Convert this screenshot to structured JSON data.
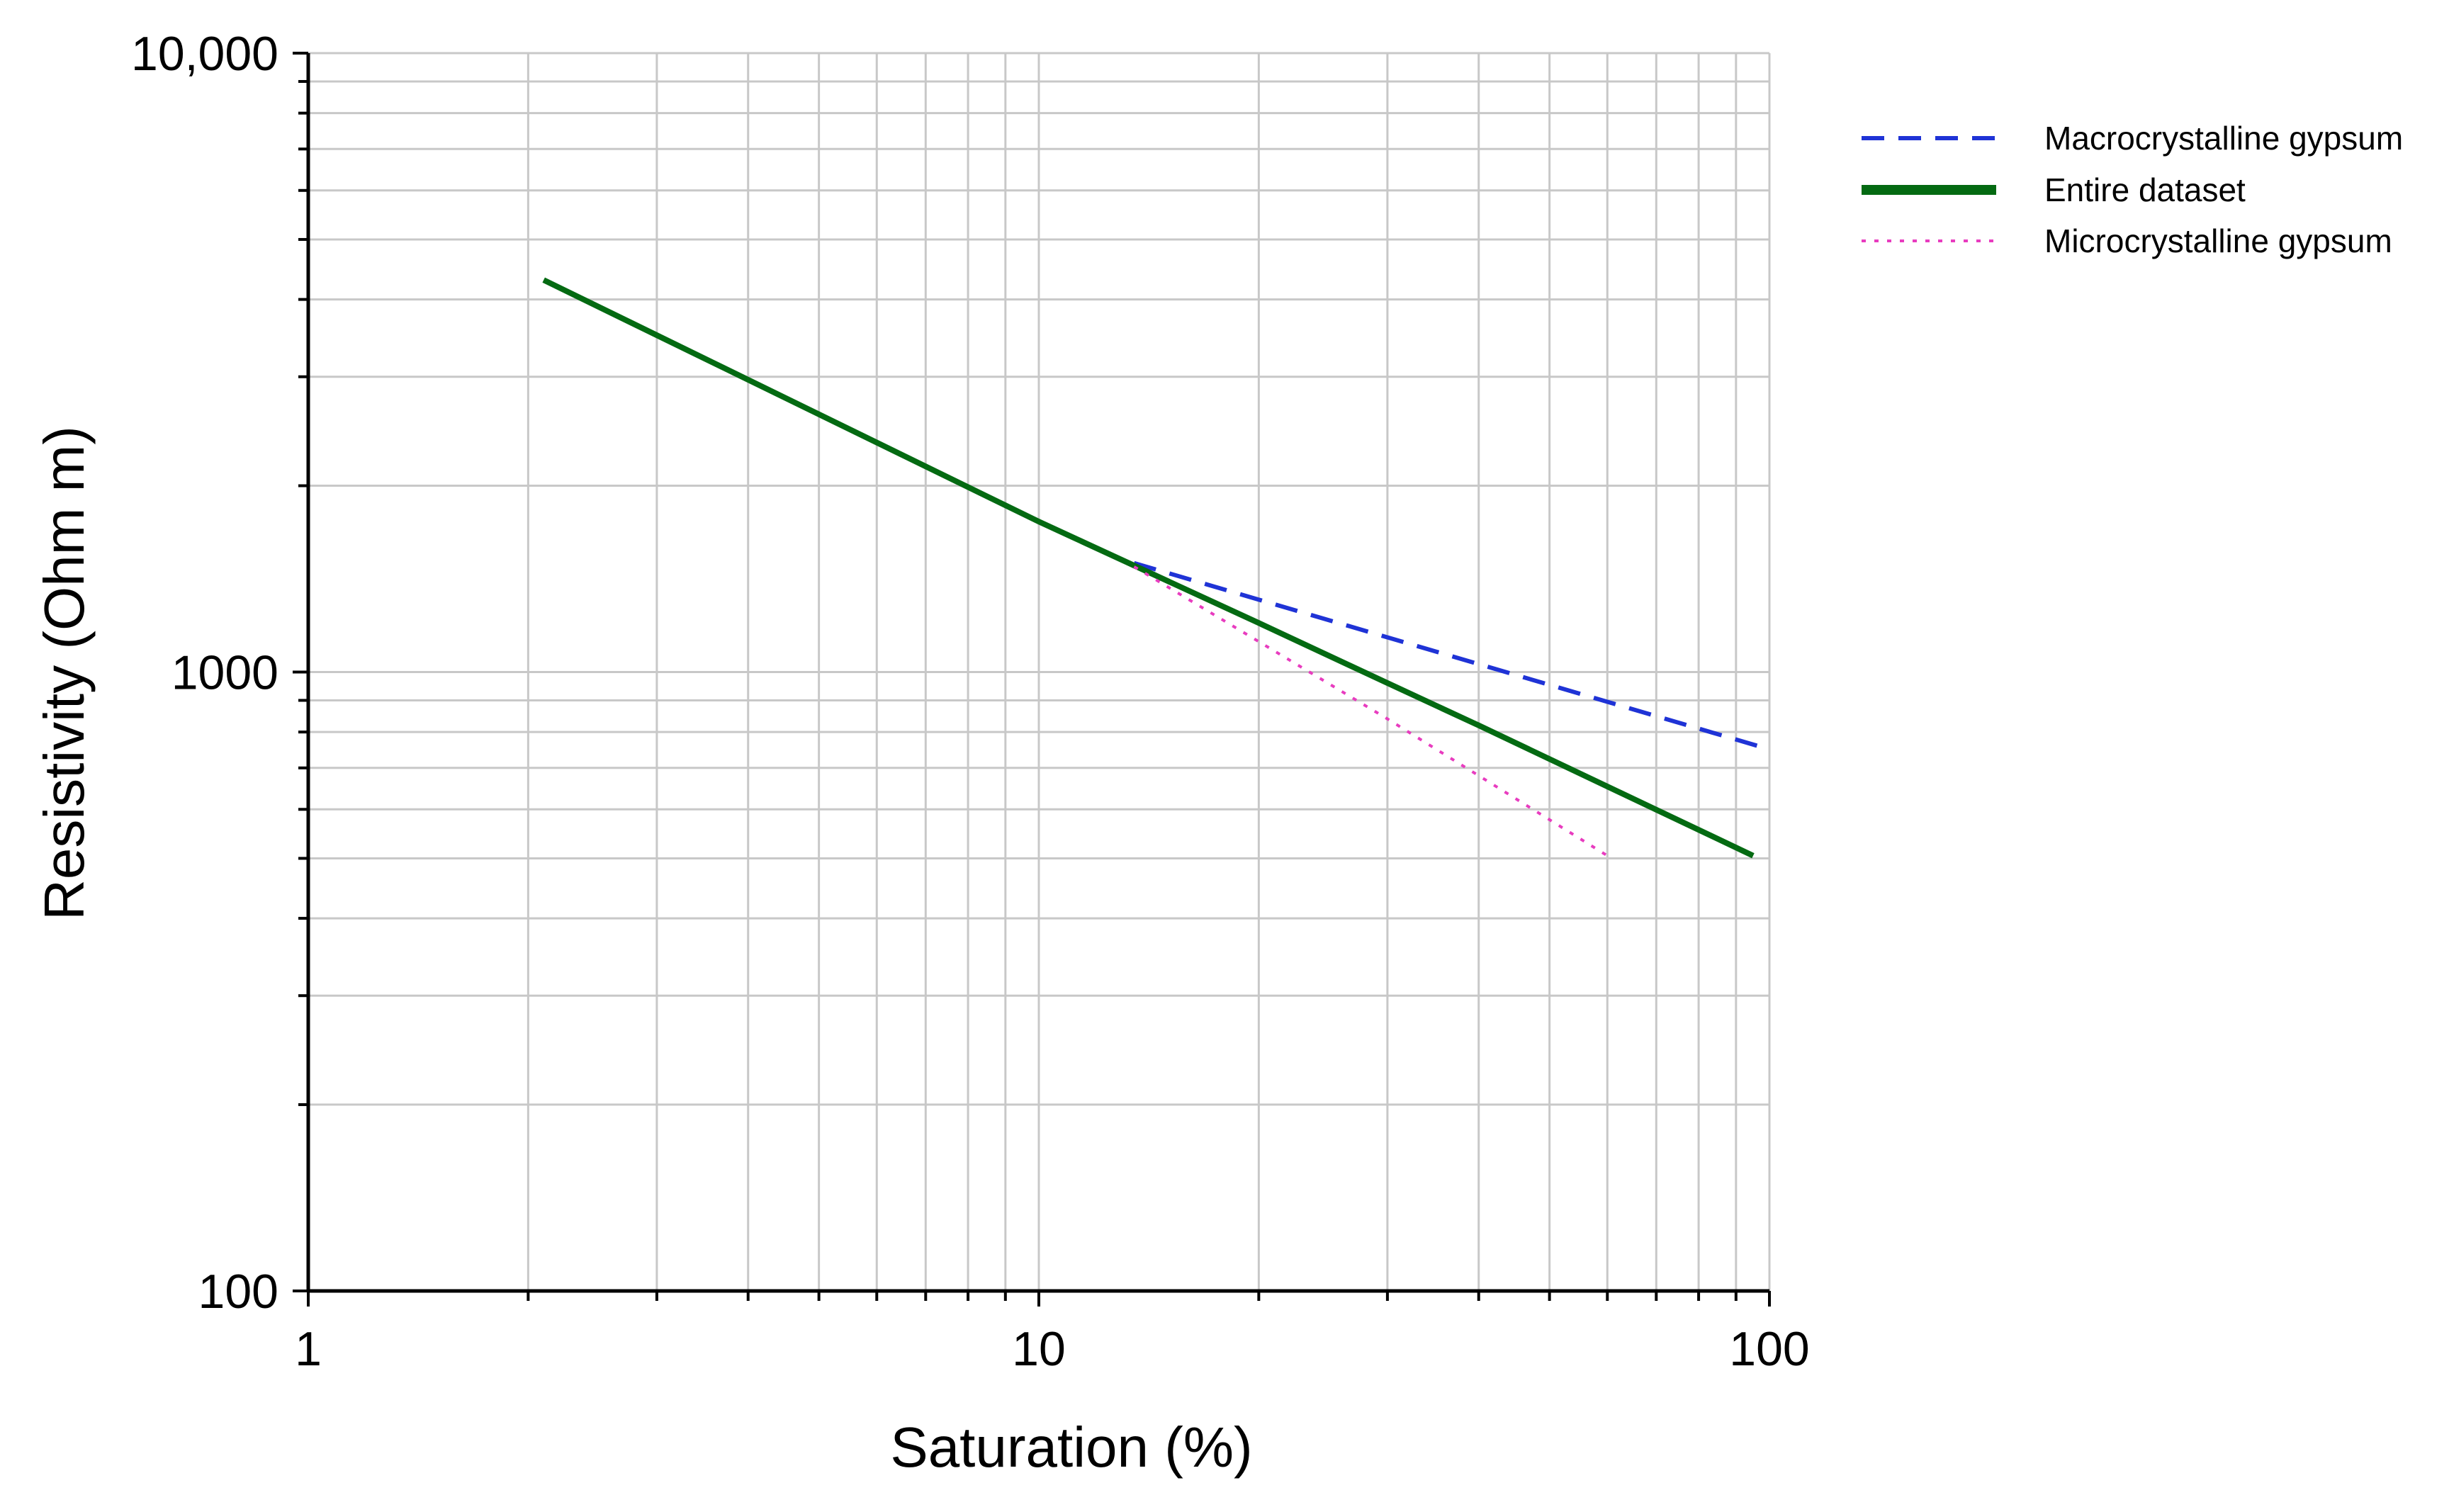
{
  "chart_data": {
    "type": "line",
    "title": "",
    "xlabel": "Saturation (%)",
    "ylabel": "Resistivity (Ohm m)",
    "x_scale": "log",
    "y_scale": "log",
    "xlim": [
      1,
      100
    ],
    "ylim": [
      100,
      10000
    ],
    "grid": true,
    "legend_position": "top-right",
    "x_ticks": [
      {
        "value": 1,
        "label": "1"
      },
      {
        "value": 10,
        "label": "10"
      },
      {
        "value": 100,
        "label": "100"
      }
    ],
    "y_ticks": [
      {
        "value": 100,
        "label": "100"
      },
      {
        "value": 1000,
        "label": "1000"
      },
      {
        "value": 10000,
        "label": "10,000"
      }
    ],
    "series": [
      {
        "name": "Macrocrystalline gypsum",
        "color": "#1f33d6",
        "style": "dashed",
        "x": [
          13.5,
          100
        ],
        "y": [
          1500,
          750
        ]
      },
      {
        "name": "Entire dataset",
        "color": "#046a12",
        "style": "solid",
        "x": [
          2.1,
          10,
          20,
          30,
          40,
          95
        ],
        "y": [
          4300,
          1750,
          1200,
          960,
          820,
          505
        ]
      },
      {
        "name": "Microcrystalline gypsum",
        "color": "#e83cbf",
        "style": "dotted",
        "x": [
          13.5,
          30,
          60
        ],
        "y": [
          1480,
          840,
          505
        ]
      }
    ]
  }
}
